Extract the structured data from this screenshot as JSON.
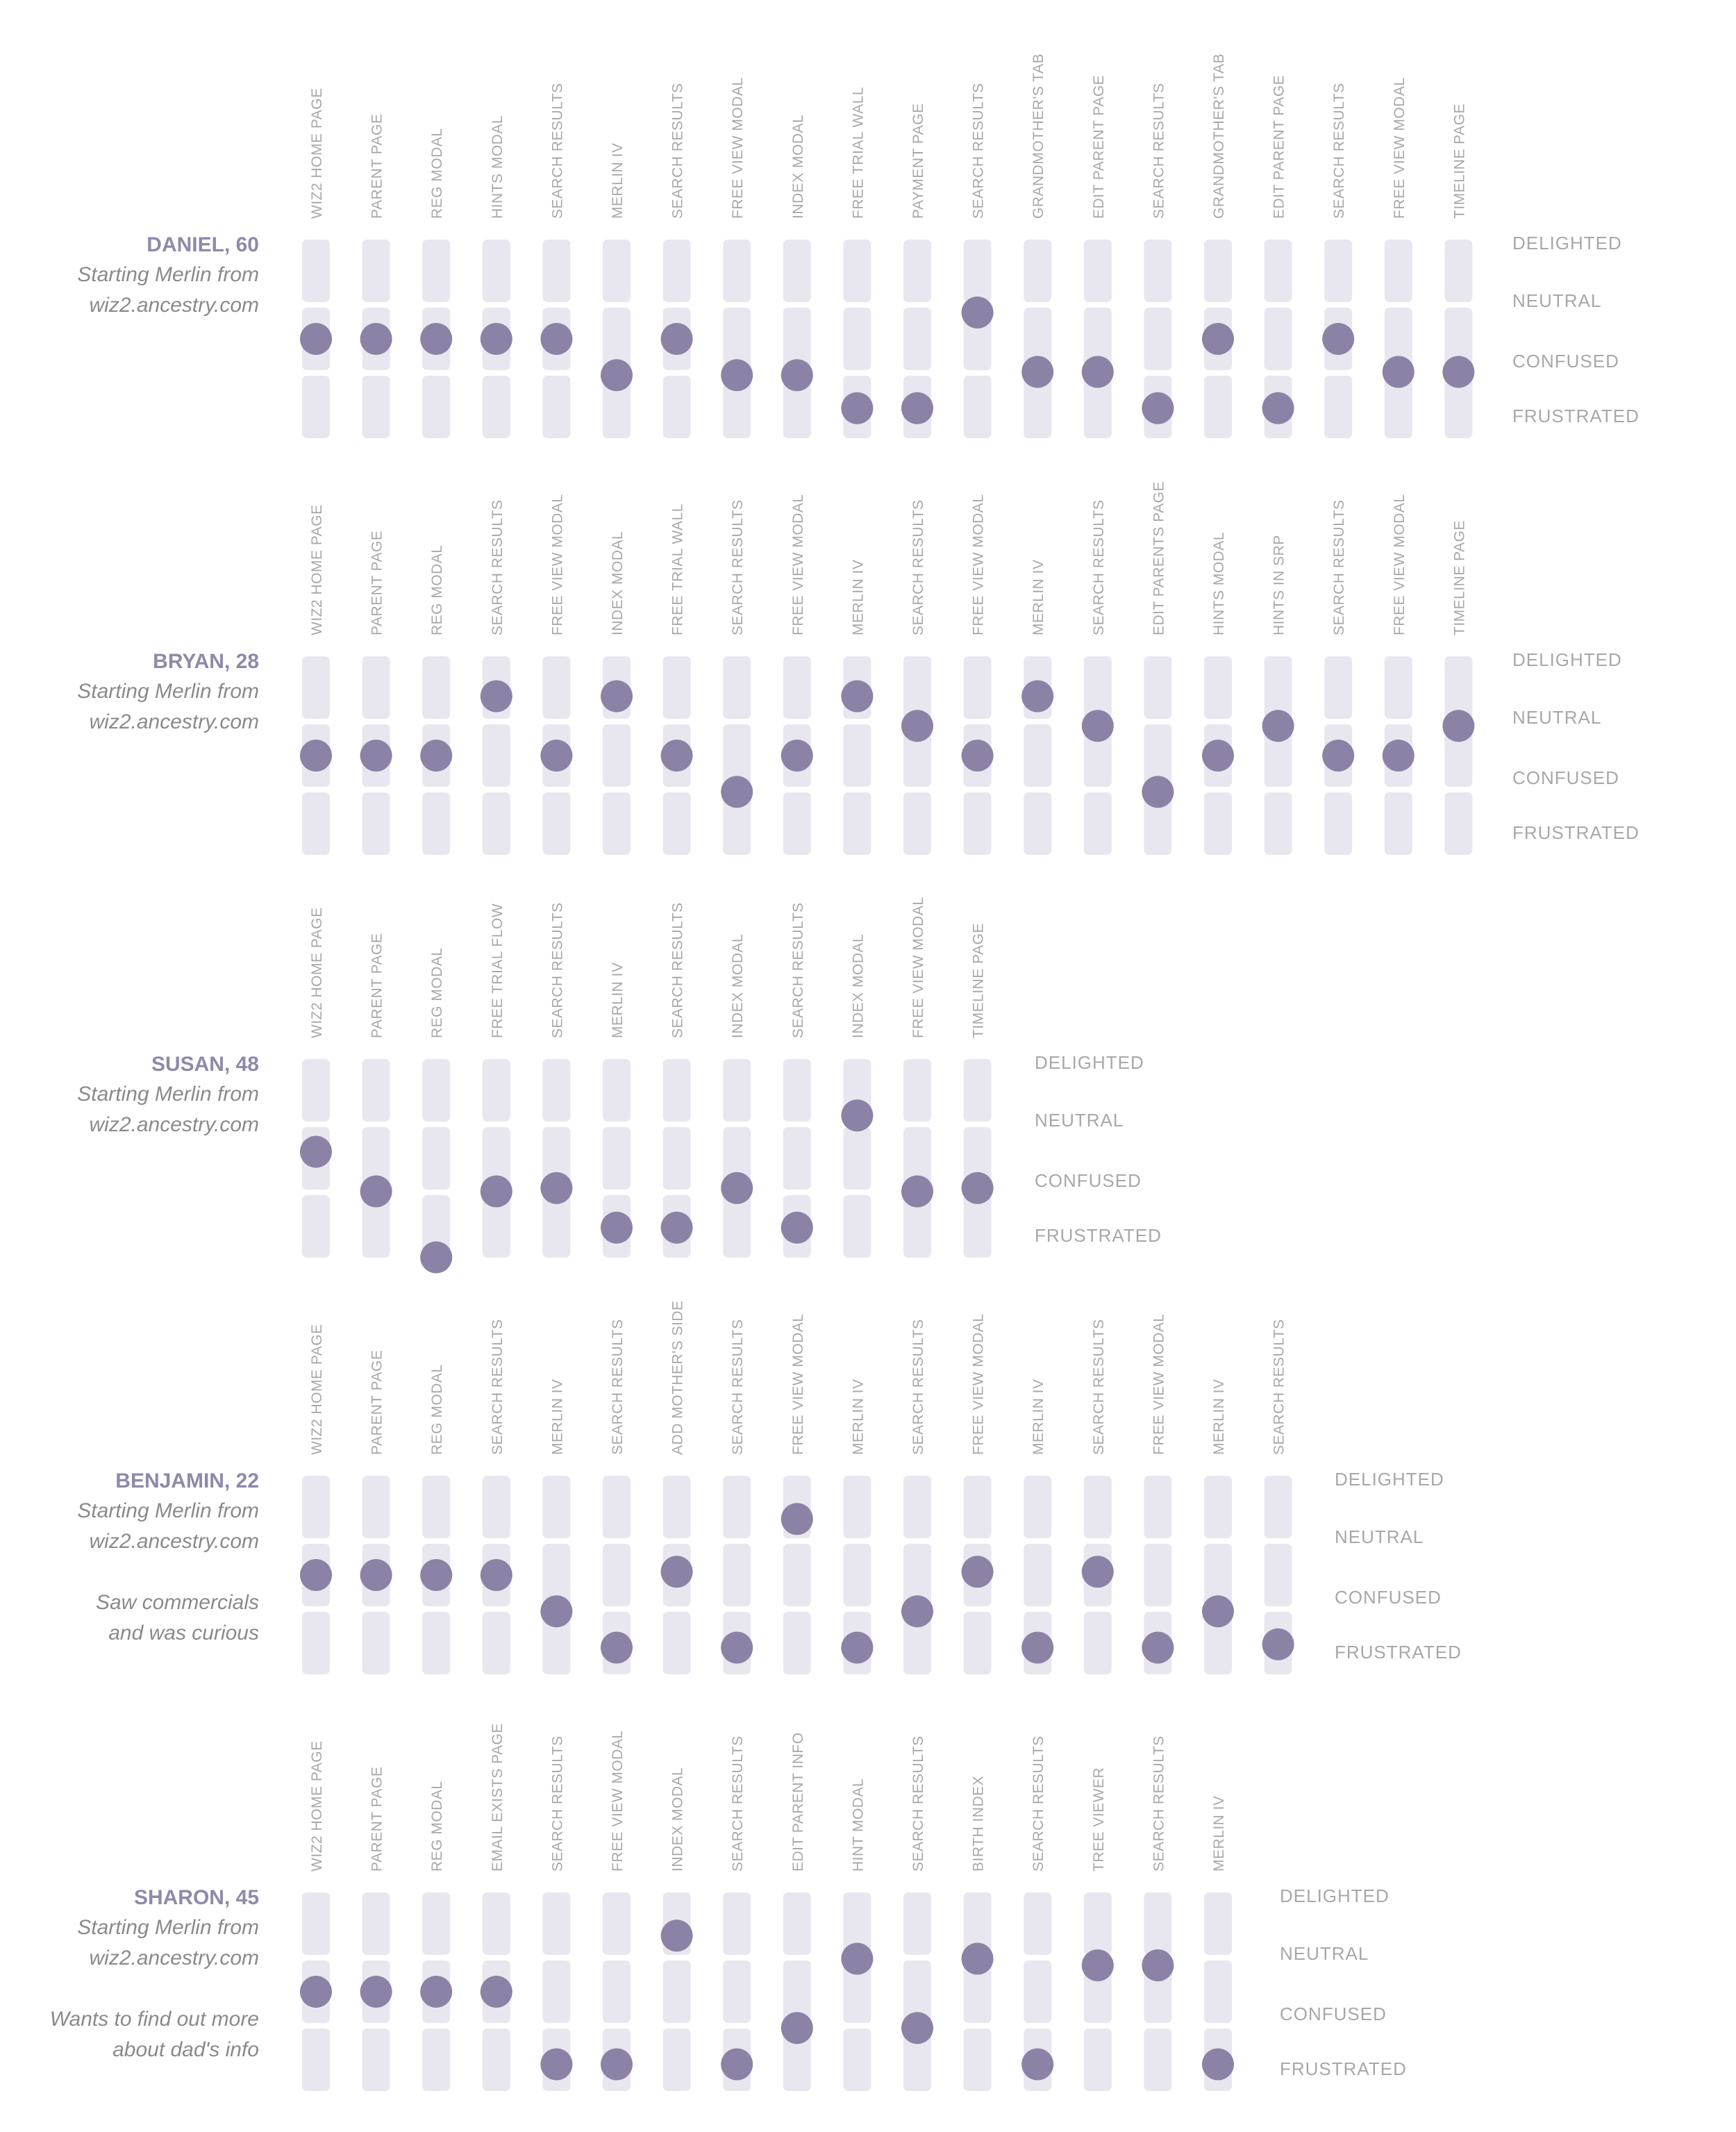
{
  "levels": [
    "DELIGHTED",
    "NEUTRAL",
    "CONFUSED",
    "FRUSTRATED"
  ],
  "colors": {
    "dot": "#8b82a6",
    "track": "#e8e7ef",
    "name": "#8f89a9",
    "label": "#a8a8a8",
    "note": "#8a8a8a"
  },
  "chart_data": [
    {
      "type": "scatter",
      "persona": "DANIEL, 60",
      "notes": [
        "Starting Merlin from",
        "wiz2.ancestry.com"
      ],
      "categories": [
        "WIZ2 HOME PAGE",
        "PARENT PAGE",
        "REG MODAL",
        "HINTS MODAL",
        "SEARCH RESULTS",
        "MERLIN IV",
        "SEARCH RESULTS",
        "FREE VIEW MODAL",
        "INDEX MODAL",
        "FREE TRIAL WALL",
        "PAYMENT PAGE",
        "SEARCH RESULTS",
        "GRANDMOTHER'S TAB",
        "EDIT PARENT PAGE",
        "SEARCH RESULTS",
        "GRANDMOTHER'S TAB",
        "EDIT PARENT PAGE",
        "SEARCH RESULTS",
        "FREE VIEW MODAL",
        "TIMELINE PAGE"
      ],
      "values": [
        1,
        1,
        1,
        1,
        1,
        1.55,
        1,
        1.55,
        1.55,
        2.05,
        2.05,
        0.6,
        1.5,
        1.5,
        2.05,
        1,
        2.05,
        1,
        1.5,
        1.5
      ]
    },
    {
      "type": "scatter",
      "persona": "BRYAN,  28",
      "notes": [
        "Starting Merlin from",
        "wiz2.ancestry.com"
      ],
      "categories": [
        "WIZ2 HOME PAGE",
        "PARENT PAGE",
        "REG MODAL",
        "SEARCH RESULTS",
        "FREE VIEW MODAL",
        "INDEX MODAL",
        "FREE TRIAL WALL",
        "SEARCH RESULTS",
        "FREE VIEW MODAL",
        "MERLIN IV",
        "SEARCH RESULTS",
        "FREE VIEW MODAL",
        "MERLIN IV",
        "SEARCH RESULTS",
        "EDIT PARENTS PAGE",
        "HINTS MODAL",
        "HINTS IN SRP",
        "SEARCH RESULTS",
        "FREE VIEW MODAL",
        "TIMELINE PAGE"
      ],
      "values": [
        1,
        1,
        1,
        0.1,
        1,
        0.1,
        1,
        1.55,
        1,
        0.1,
        0.55,
        1,
        0.1,
        0.55,
        1.55,
        1,
        0.55,
        1,
        1,
        0.55
      ]
    },
    {
      "type": "scatter",
      "persona": "SUSAN,  48",
      "notes": [
        "Starting Merlin from",
        "wiz2.ancestry.com"
      ],
      "categories": [
        "WIZ2 HOME PAGE",
        "PARENT PAGE",
        "REG MODAL",
        "FREE TRIAL FLOW",
        "SEARCH RESULTS",
        "MERLIN IV",
        "SEARCH RESULTS",
        "INDEX MODAL",
        "SEARCH RESULTS",
        "INDEX MODAL",
        "FREE VIEW MODAL",
        "TIMELINE PAGE"
      ],
      "values": [
        0.9,
        1.5,
        2.5,
        1.5,
        1.45,
        2.05,
        2.05,
        1.45,
        2.05,
        0.35,
        1.5,
        1.45
      ]
    },
    {
      "type": "scatter",
      "persona": "BENJAMIN, 22",
      "notes": [
        "Starting Merlin from",
        "wiz2.ancestry.com",
        "",
        "Saw commercials",
        "and was curious"
      ],
      "categories": [
        "WIZ2 HOME PAGE",
        "PARENT PAGE",
        "REG MODAL",
        "SEARCH RESULTS",
        "MERLIN IV",
        "SEARCH RESULTS",
        "ADD MOTHER'S SIDE",
        "SEARCH RESULTS",
        "FREE VIEW MODAL",
        "MERLIN IV",
        "SEARCH RESULTS",
        "FREE VIEW MODAL",
        "MERLIN IV",
        "SEARCH RESULTS",
        "FREE VIEW MODAL",
        "MERLIN IV",
        "SEARCH RESULTS"
      ],
      "values": [
        1,
        1,
        1,
        1,
        1.55,
        2.1,
        0.95,
        2.1,
        0.15,
        2.1,
        1.55,
        0.95,
        2.1,
        0.95,
        2.1,
        1.55,
        2.05
      ]
    },
    {
      "type": "scatter",
      "persona": "SHARON, 45",
      "notes": [
        "Starting Merlin from",
        "wiz2.ancestry.com",
        "",
        "Wants to find out more",
        "about dad's info"
      ],
      "categories": [
        "WIZ2 HOME PAGE",
        "PARENT PAGE",
        "REG MODAL",
        "EMAIL EXISTS PAGE",
        "SEARCH RESULTS",
        "FREE VIEW MODAL",
        "INDEX MODAL",
        "SEARCH RESULTS",
        "EDIT PARENT INFO",
        "HINT MODAL",
        "SEARCH RESULTS",
        "BIRTH INDEX",
        "SEARCH RESULTS",
        "TREE VIEWER",
        "SEARCH RESULTS",
        "MERLIN IV"
      ],
      "values": [
        1,
        1,
        1,
        1,
        2.1,
        2.1,
        0.15,
        2.1,
        1.55,
        0.5,
        1.55,
        0.5,
        2.1,
        0.6,
        0.6,
        2.1
      ]
    }
  ]
}
